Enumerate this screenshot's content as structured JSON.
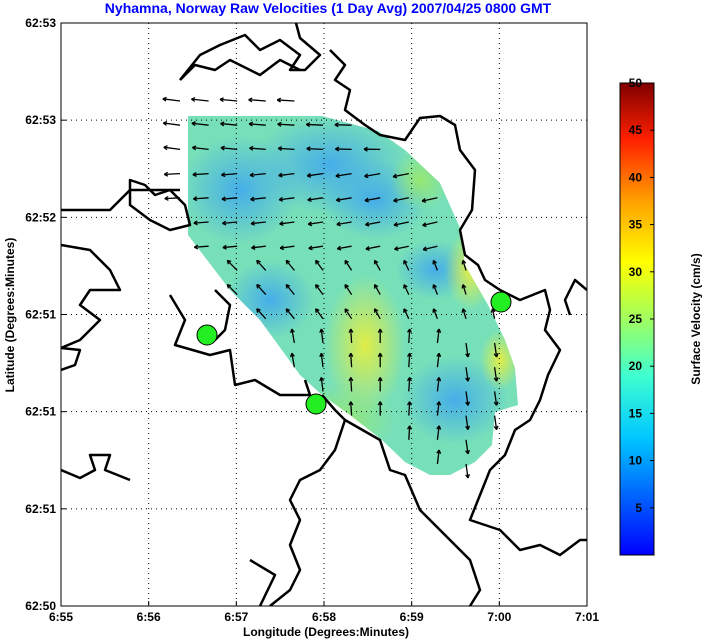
{
  "chart_data": {
    "type": "quiver-map",
    "title": "Nyhamna, Norway Raw Velocities (1 Day Avg) 2007/04/25 0800 GMT",
    "xlabel": "Longitude (Degrees:Minutes)",
    "ylabel": "Latitude (Degrees:Minutes)",
    "x_ticks": [
      "6:55",
      "6:56",
      "6:57",
      "6:58",
      "6:59",
      "7:00",
      "7:01"
    ],
    "y_ticks": [
      "62:50",
      "62:51",
      "62:51",
      "62:51",
      "62:52",
      "62:53",
      "62:53"
    ],
    "grid": true,
    "colorbar": {
      "label": "Surface Velocity (cm/s)",
      "ticks": [
        "5",
        "10",
        "15",
        "20",
        "25",
        "30",
        "35",
        "40",
        "45",
        "50"
      ],
      "range": [
        0,
        50
      ],
      "colormap": "jet"
    },
    "site_markers_color": "#22ee22",
    "site_count": 3,
    "speed_range_cm_s": [
      5,
      25
    ]
  }
}
